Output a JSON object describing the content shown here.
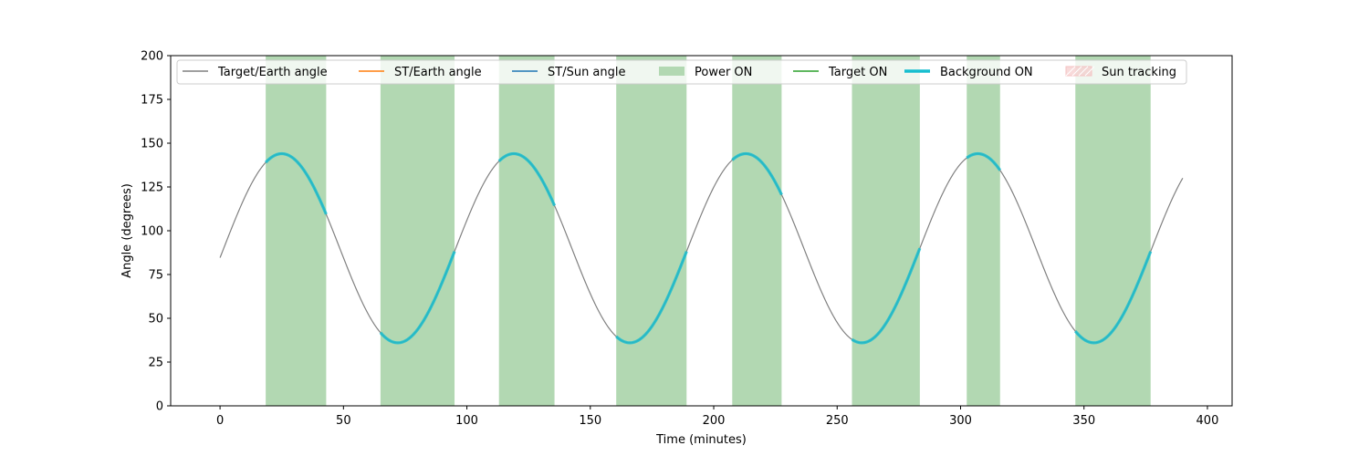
{
  "chart_data": {
    "type": "line",
    "title": "",
    "xlabel": "Time (minutes)",
    "ylabel": "Angle (degrees)",
    "xlim": [
      -20,
      410
    ],
    "ylim": [
      0,
      200
    ],
    "x_ticks": [
      0,
      50,
      100,
      150,
      200,
      250,
      300,
      350,
      400
    ],
    "y_ticks": [
      0,
      25,
      50,
      75,
      100,
      125,
      150,
      175,
      200
    ],
    "grid": false,
    "legend_position": "top",
    "legend": [
      {
        "label": "Target/Earth angle",
        "kind": "line",
        "color": "#808080"
      },
      {
        "label": "ST/Earth angle",
        "kind": "line",
        "color": "#ff7f0e"
      },
      {
        "label": "ST/Sun angle",
        "kind": "line",
        "color": "#1f77b4"
      },
      {
        "label": "Power ON",
        "kind": "patch",
        "color": "#b2d8b2"
      },
      {
        "label": "Target ON",
        "kind": "line",
        "color": "#2ca02c"
      },
      {
        "label": "Background ON",
        "kind": "thickline",
        "color": "#17becf"
      },
      {
        "label": "Sun tracking",
        "kind": "hatch",
        "color": "#f4c2c2"
      }
    ],
    "target_earth_angle": {
      "name": "Target/Earth angle",
      "color": "#808080",
      "x_range": [
        0,
        390
      ],
      "mean": 90,
      "amplitude": 54,
      "period": 94,
      "peak_times": [
        25,
        119,
        213,
        307
      ]
    },
    "power_on_intervals": [
      [
        18.5,
        43
      ],
      [
        65,
        95
      ],
      [
        113,
        135.5
      ],
      [
        160.5,
        189
      ],
      [
        207.5,
        227.5
      ],
      [
        256,
        283.5
      ],
      [
        302.5,
        316
      ],
      [
        346.5,
        377
      ]
    ],
    "background_on_intervals": [
      [
        18.5,
        43
      ],
      [
        65,
        95
      ],
      [
        113,
        135.5
      ],
      [
        160.5,
        189
      ],
      [
        207.5,
        227.5
      ],
      [
        256,
        283.5
      ],
      [
        302.5,
        316
      ],
      [
        346.5,
        377
      ]
    ],
    "background_color": "#17becf",
    "power_color": "#b2d8b2"
  }
}
